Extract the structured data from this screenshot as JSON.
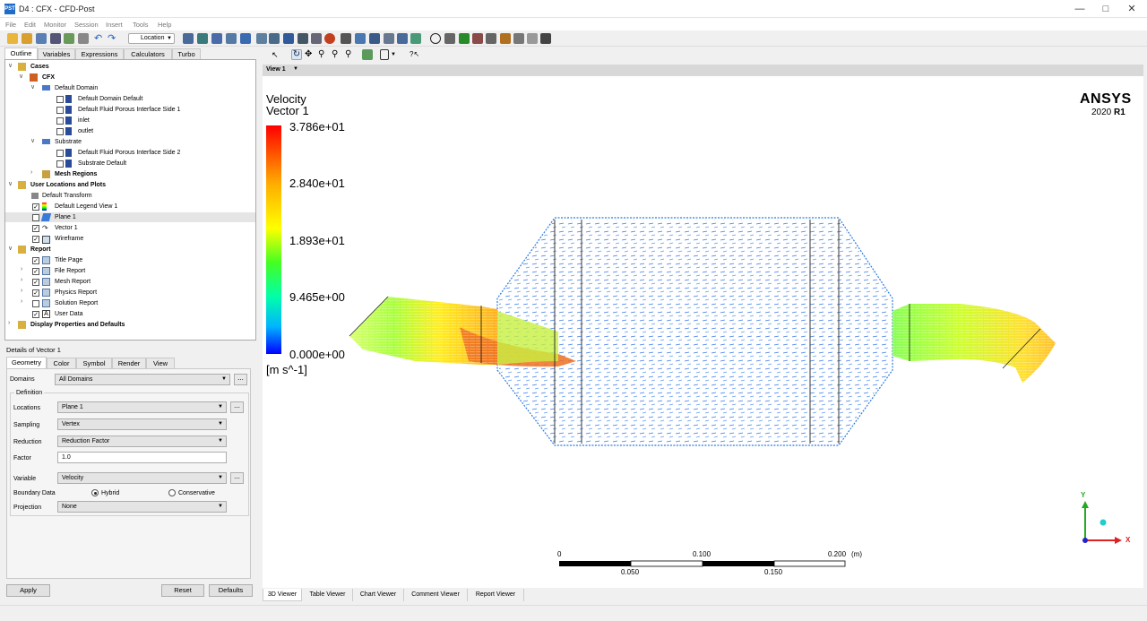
{
  "window": {
    "title": "D4 : CFX - CFD-Post",
    "app_icon": "PST"
  },
  "menu": [
    "File",
    "Edit",
    "Monitor",
    "Session",
    "Insert",
    "Tools",
    "Help"
  ],
  "toolbar": {
    "location_label": "Location"
  },
  "left_tabs": [
    "Outline",
    "Variables",
    "Expressions",
    "Calculators",
    "Turbo"
  ],
  "tree": {
    "cases": "Cases",
    "cfx": "CFX",
    "default_domain": "Default Domain",
    "dd_items": [
      "Default Domain Default",
      "Default Fluid Porous Interface Side 1",
      "inlet",
      "outlet"
    ],
    "substrate": "Substrate",
    "sub_items": [
      "Default Fluid Porous Interface Side 2",
      "Substrate Default"
    ],
    "mesh_regions": "Mesh Regions",
    "user_locations": "User Locations and Plots",
    "ul_items": [
      "Default Transform",
      "Default Legend View 1",
      "Plane 1",
      "Vector 1",
      "Wireframe"
    ],
    "report": "Report",
    "report_items": [
      "Title Page",
      "File Report",
      "Mesh Report",
      "Physics Report",
      "Solution Report",
      "User Data"
    ],
    "display": "Display Properties and Defaults"
  },
  "details": {
    "title": "Details of Vector 1",
    "tabs": [
      "Geometry",
      "Color",
      "Symbol",
      "Render",
      "View"
    ],
    "domains_label": "Domains",
    "domains_value": "All Domains",
    "definition_label": "Definition",
    "locations_label": "Locations",
    "locations_value": "Plane 1",
    "sampling_label": "Sampling",
    "sampling_value": "Vertex",
    "reduction_label": "Reduction",
    "reduction_value": "Reduction Factor",
    "factor_label": "Factor",
    "factor_value": "1.0",
    "variable_label": "Variable",
    "variable_value": "Velocity",
    "boundary_label": "Boundary Data",
    "hybrid": "Hybrid",
    "conservative": "Conservative",
    "projection_label": "Projection",
    "projection_value": "None",
    "apply": "Apply",
    "reset": "Reset",
    "defaults": "Defaults"
  },
  "viewer": {
    "view_label": "View 1",
    "legend_title1": "Velocity",
    "legend_title2": "Vector 1",
    "legend_values": [
      "3.786e+01",
      "2.840e+01",
      "1.893e+01",
      "9.465e+00",
      "0.000e+00"
    ],
    "legend_unit": "[m s^-1]",
    "brand": "ANSYS",
    "version": "2020",
    "release": "R1",
    "scale_top": [
      "0",
      "0.100",
      "0.200",
      "(m)"
    ],
    "scale_bottom": [
      "0.050",
      "0.150"
    ],
    "axis_y": "Y",
    "axis_x": "X"
  },
  "bottom_tabs": [
    "3D Viewer",
    "Table Viewer",
    "Chart Viewer",
    "Comment Viewer",
    "Report Viewer"
  ],
  "colors": {
    "accent": "#0078d7",
    "legend_max": "#ff0000",
    "legend_min": "#0000ff"
  }
}
